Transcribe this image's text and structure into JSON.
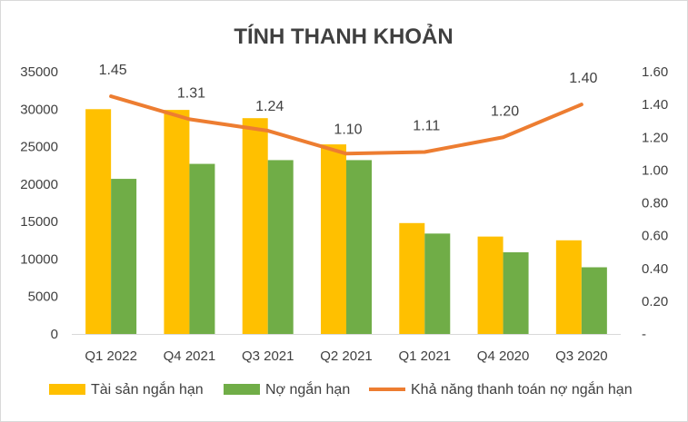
{
  "chart_data": {
    "type": "bar",
    "title": "TÍNH THANH KHOẢN",
    "categories": [
      "Q1 2022",
      "Q4 2021",
      "Q3 2021",
      "Q2 2021",
      "Q1 2021",
      "Q4 2020",
      "Q3 2020"
    ],
    "series": [
      {
        "name": "Tài sản ngắn hạn",
        "type": "bar",
        "axis": "left",
        "color": "#FFC000",
        "values": [
          30000,
          29900,
          28800,
          25300,
          14800,
          13000,
          12500
        ]
      },
      {
        "name": "Nợ ngắn hạn",
        "type": "bar",
        "axis": "left",
        "color": "#70AD47",
        "values": [
          20700,
          22700,
          23200,
          23200,
          13400,
          10900,
          8900
        ]
      },
      {
        "name": "Khả năng thanh toán nợ ngắn hạn",
        "type": "line",
        "axis": "right",
        "color": "#ED7D31",
        "values": [
          1.45,
          1.31,
          1.24,
          1.1,
          1.11,
          1.2,
          1.4
        ],
        "data_labels": [
          "1.45",
          "1.31",
          "1.24",
          "1.10",
          "1.11",
          "1.20",
          "1.40"
        ]
      }
    ],
    "y_left": {
      "min": 0,
      "max": 35000,
      "step": 5000,
      "tick_labels": [
        "0",
        "5000",
        "10000",
        "15000",
        "20000",
        "25000",
        "30000",
        "35000"
      ]
    },
    "y_right": {
      "min": 0,
      "max": 1.6,
      "step": 0.2,
      "tick_labels": [
        "-",
        "0.20",
        "0.40",
        "0.60",
        "0.80",
        "1.00",
        "1.20",
        "1.40",
        "1.60"
      ]
    },
    "grid": false,
    "legend_position": "bottom"
  }
}
